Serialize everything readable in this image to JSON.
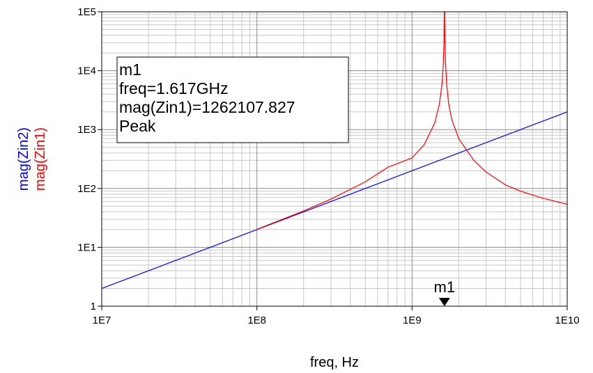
{
  "chart_data": {
    "type": "line",
    "xscale": "log",
    "yscale": "log",
    "xlim": [
      10000000.0,
      10000000000.0
    ],
    "ylim": [
      1,
      100000
    ],
    "xlabel": "freq, Hz",
    "ylabels": [
      {
        "text": "mag(Zin2)",
        "color": "#0000ff"
      },
      {
        "text": "mag(Zin1)",
        "color": "#ff0000"
      }
    ],
    "x_ticks": [
      {
        "value": 10000000.0,
        "label": "1E7"
      },
      {
        "value": 100000000.0,
        "label": "1E8"
      },
      {
        "value": 1000000000.0,
        "label": "1E9"
      },
      {
        "value": 10000000000.0,
        "label": "1E10"
      }
    ],
    "y_ticks": [
      {
        "value": 1,
        "label": "1"
      },
      {
        "value": 10,
        "label": "1E1"
      },
      {
        "value": 100,
        "label": "1E2"
      },
      {
        "value": 1000,
        "label": "1E3"
      },
      {
        "value": 10000,
        "label": "1E4"
      },
      {
        "value": 100000,
        "label": "1E5"
      }
    ],
    "grid": true,
    "series": [
      {
        "name": "mag(Zin2)",
        "color": "#0000ff",
        "x": [
          10000000.0,
          30000000.0,
          100000000.0,
          300000000.0,
          1000000000.0,
          3000000000.0,
          10000000000.0
        ],
        "y": [
          2.0,
          6.0,
          20.0,
          60.0,
          200.0,
          600.0,
          2000.0
        ]
      },
      {
        "name": "mag(Zin1)",
        "color": "#ff0000",
        "x": [
          100000000.0,
          200000000.0,
          300000000.0,
          500000000.0,
          700000000.0,
          1000000000.0,
          1200000000.0,
          1400000000.0,
          1500000000.0,
          1560000000.0,
          1590000000.0,
          1605000000.0,
          1612000000.0,
          1617000000.0,
          1622000000.0,
          1630000000.0,
          1645000000.0,
          1670000000.0,
          1720000000.0,
          1800000000.0,
          2000000000.0,
          2500000000.0,
          3000000000.0,
          4000000000.0,
          5000000000.0,
          7000000000.0,
          10000000000.0
        ],
        "y": [
          20.2,
          41.5,
          66.0,
          130.0,
          230.0,
          330.0,
          560.0,
          1300.0,
          2700.0,
          6000.0,
          13000.0,
          30000.0,
          80000.0,
          1262107.827,
          80000.0,
          30000.0,
          13000.0,
          6000.0,
          2800.0,
          1500.0,
          700.0,
          300.0,
          190.0,
          115.0,
          90.0,
          68.0,
          54.0
        ]
      }
    ],
    "marker": {
      "name": "m1",
      "x": 1617000000.0,
      "lines": [
        "m1",
        "freq=1.617GHz",
        "mag(Zin1)=1262107.827",
        "Peak"
      ]
    }
  }
}
